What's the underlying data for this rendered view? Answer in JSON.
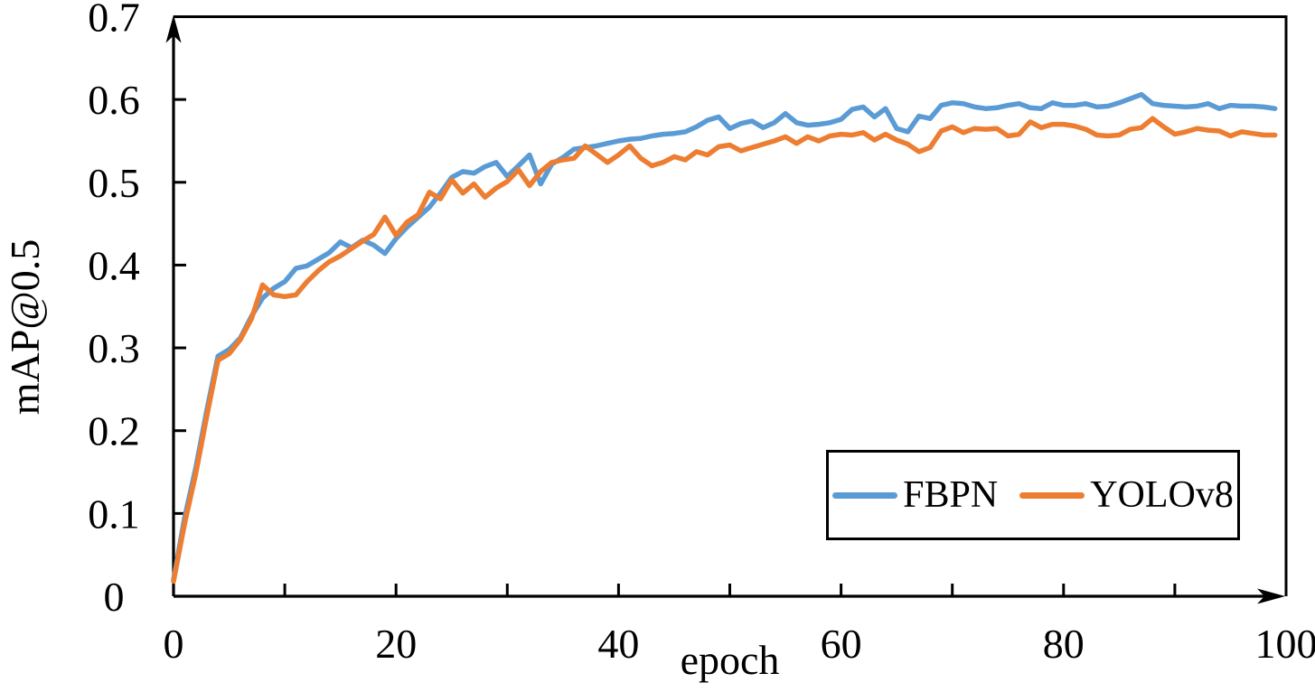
{
  "chart_data": {
    "type": "line",
    "title": "",
    "xlabel": "epoch",
    "ylabel": "mAP@0.5",
    "xlim": [
      0,
      100
    ],
    "ylim": [
      0,
      0.7
    ],
    "grid": false,
    "legend_position": "lower-right-box",
    "axis_color": "#000000",
    "x_tick_labels": [
      0,
      20,
      40,
      60,
      80,
      100
    ],
    "x_minor_ticks": [
      10,
      30,
      50,
      70,
      90
    ],
    "y_ticks": [
      0,
      0.1,
      0.2,
      0.3,
      0.4,
      0.5,
      0.6,
      0.7
    ],
    "y_tick_labels": [
      "0",
      "0.1",
      "0.2",
      "0.3",
      "0.4",
      "0.5",
      "0.6",
      "0.7"
    ],
    "x": [
      0,
      1,
      2,
      3,
      4,
      5,
      6,
      7,
      8,
      9,
      10,
      11,
      12,
      13,
      14,
      15,
      16,
      17,
      18,
      19,
      20,
      21,
      22,
      23,
      24,
      25,
      26,
      27,
      28,
      29,
      30,
      31,
      32,
      33,
      34,
      35,
      36,
      37,
      38,
      39,
      40,
      41,
      42,
      43,
      44,
      45,
      46,
      47,
      48,
      49,
      50,
      51,
      52,
      53,
      54,
      55,
      56,
      57,
      58,
      59,
      60,
      61,
      62,
      63,
      64,
      65,
      66,
      67,
      68,
      69,
      70,
      71,
      72,
      73,
      74,
      75,
      76,
      77,
      78,
      79,
      80,
      81,
      82,
      83,
      84,
      85,
      86,
      87,
      88,
      89,
      90,
      91,
      92,
      93,
      94,
      95,
      96,
      97,
      98,
      99
    ],
    "series": [
      {
        "name": "FBPN",
        "color": "#5B9BD5",
        "values": [
          0.02,
          0.095,
          0.155,
          0.225,
          0.29,
          0.298,
          0.312,
          0.338,
          0.36,
          0.372,
          0.38,
          0.396,
          0.399,
          0.407,
          0.415,
          0.428,
          0.421,
          0.43,
          0.424,
          0.414,
          0.432,
          0.446,
          0.458,
          0.47,
          0.487,
          0.506,
          0.513,
          0.511,
          0.519,
          0.524,
          0.507,
          0.52,
          0.533,
          0.498,
          0.522,
          0.53,
          0.54,
          0.542,
          0.544,
          0.547,
          0.55,
          0.552,
          0.553,
          0.556,
          0.558,
          0.559,
          0.561,
          0.567,
          0.575,
          0.579,
          0.565,
          0.571,
          0.574,
          0.566,
          0.572,
          0.583,
          0.572,
          0.569,
          0.57,
          0.572,
          0.576,
          0.588,
          0.591,
          0.579,
          0.589,
          0.565,
          0.561,
          0.58,
          0.577,
          0.593,
          0.596,
          0.595,
          0.591,
          0.589,
          0.59,
          0.593,
          0.595,
          0.59,
          0.589,
          0.596,
          0.593,
          0.593,
          0.595,
          0.591,
          0.592,
          0.596,
          0.601,
          0.606,
          0.595,
          0.593,
          0.592,
          0.591,
          0.592,
          0.595,
          0.589,
          0.593,
          0.592,
          0.592,
          0.591,
          0.589
        ]
      },
      {
        "name": "YOLOv8",
        "color": "#ED7D31",
        "values": [
          0.018,
          0.088,
          0.148,
          0.218,
          0.285,
          0.293,
          0.31,
          0.335,
          0.376,
          0.364,
          0.362,
          0.364,
          0.38,
          0.393,
          0.404,
          0.411,
          0.42,
          0.429,
          0.437,
          0.458,
          0.436,
          0.452,
          0.461,
          0.488,
          0.48,
          0.503,
          0.487,
          0.498,
          0.482,
          0.493,
          0.501,
          0.515,
          0.496,
          0.513,
          0.524,
          0.527,
          0.529,
          0.544,
          0.534,
          0.524,
          0.533,
          0.544,
          0.529,
          0.52,
          0.524,
          0.531,
          0.527,
          0.537,
          0.533,
          0.543,
          0.545,
          0.538,
          0.542,
          0.546,
          0.55,
          0.555,
          0.547,
          0.555,
          0.55,
          0.556,
          0.558,
          0.557,
          0.56,
          0.551,
          0.558,
          0.551,
          0.546,
          0.537,
          0.542,
          0.562,
          0.567,
          0.56,
          0.565,
          0.564,
          0.565,
          0.556,
          0.558,
          0.573,
          0.566,
          0.57,
          0.57,
          0.568,
          0.564,
          0.557,
          0.556,
          0.557,
          0.564,
          0.566,
          0.577,
          0.567,
          0.558,
          0.561,
          0.565,
          0.563,
          0.562,
          0.556,
          0.561,
          0.559,
          0.557,
          0.557
        ]
      }
    ]
  }
}
